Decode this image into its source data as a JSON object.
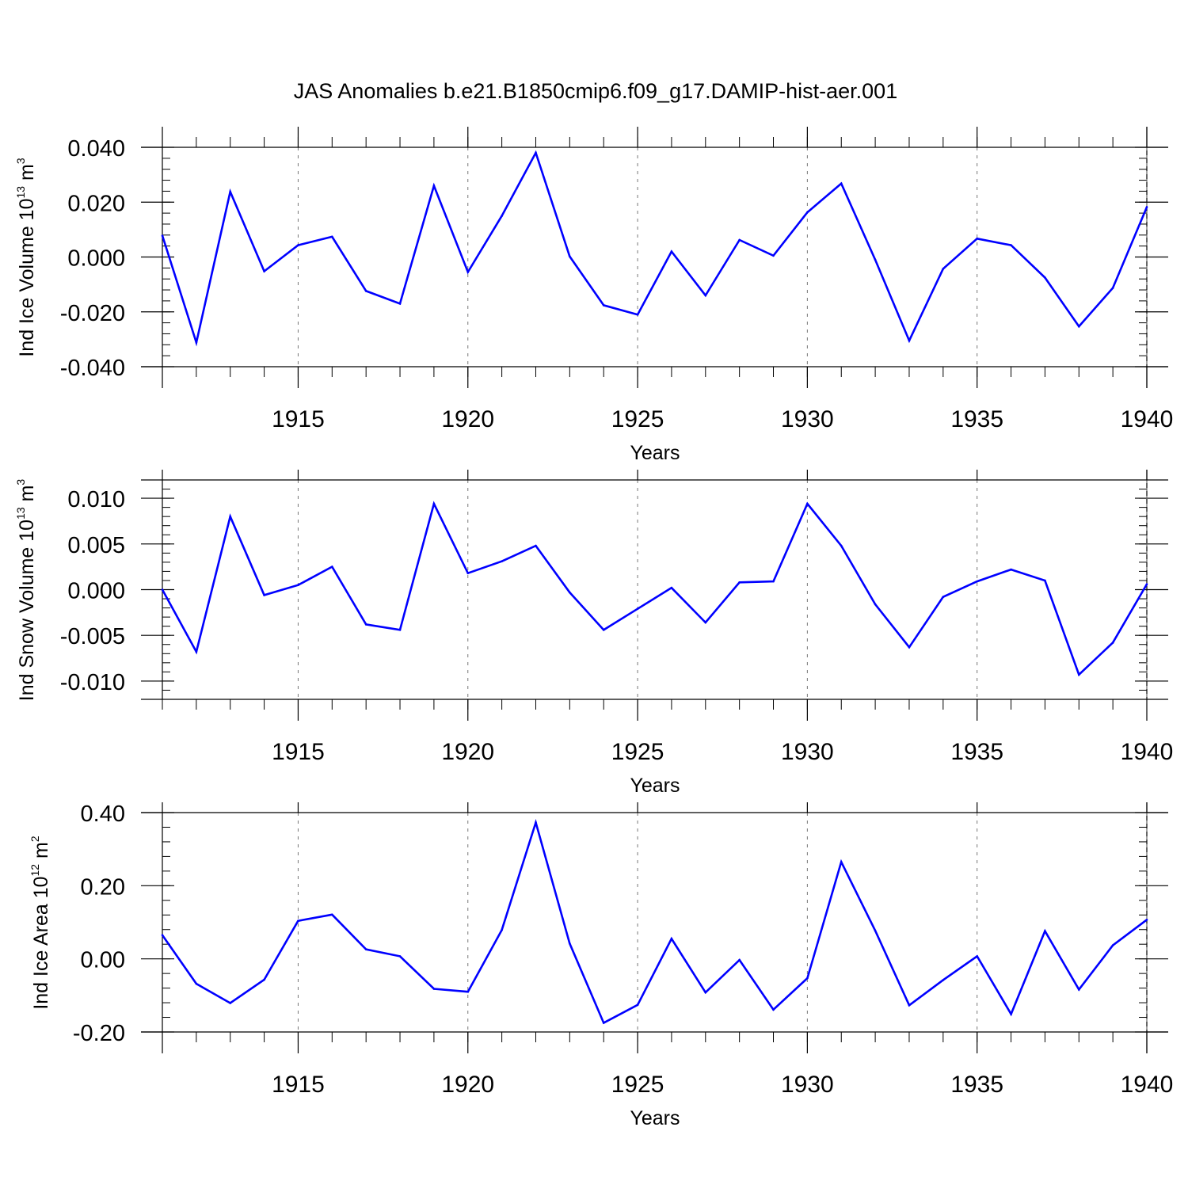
{
  "title": "JAS Anomalies b.e21.B1850cmip6.f09_g17.DAMIP-hist-aer.001",
  "line_color": "#0000ff",
  "chart_data": [
    {
      "type": "line",
      "ylabel_main": "Ind Ice Volume 10",
      "ylabel_exp": "13",
      "ylabel_unit": " m",
      "ylabel_unit_exp": "3",
      "xlabel": "Years",
      "xlim": [
        1911,
        1940
      ],
      "ylim": [
        -0.04,
        0.04
      ],
      "yticks": [
        -0.04,
        -0.02,
        0.0,
        0.02,
        0.04
      ],
      "ytick_labels": [
        "-0.040",
        "-0.020",
        "0.000",
        "0.020",
        "0.040"
      ],
      "yminor_step": 0.004,
      "xticks": [
        1915,
        1920,
        1925,
        1930,
        1935,
        1940
      ],
      "xtick_labels": [
        "1915",
        "1920",
        "1925",
        "1930",
        "1935",
        "1940"
      ],
      "x": [
        1911,
        1912,
        1913,
        1914,
        1915,
        1916,
        1917,
        1918,
        1919,
        1920,
        1921,
        1922,
        1923,
        1924,
        1925,
        1926,
        1927,
        1928,
        1929,
        1930,
        1931,
        1932,
        1933,
        1934,
        1935,
        1936,
        1937,
        1938,
        1939,
        1940
      ],
      "values": [
        0.0078,
        -0.0312,
        0.0238,
        -0.0052,
        0.0043,
        0.0074,
        -0.0124,
        -0.017,
        0.026,
        -0.0055,
        0.015,
        0.038,
        0.0002,
        -0.0176,
        -0.021,
        0.002,
        -0.014,
        0.0062,
        0.0005,
        0.0163,
        0.0268,
        -0.001,
        -0.0305,
        -0.0043,
        0.0067,
        0.0043,
        -0.0075,
        -0.0253,
        -0.0113,
        0.0182
      ]
    },
    {
      "type": "line",
      "ylabel_main": "Ind Snow Volume 10",
      "ylabel_exp": "13",
      "ylabel_unit": " m",
      "ylabel_unit_exp": "3",
      "xlabel": "Years",
      "xlim": [
        1911,
        1940
      ],
      "ylim": [
        -0.012,
        0.012
      ],
      "yticks": [
        -0.01,
        -0.005,
        0.0,
        0.005,
        0.01
      ],
      "ytick_labels": [
        "-0.010",
        "-0.005",
        "0.000",
        "0.005",
        "0.010"
      ],
      "yminor_step": 0.001,
      "xticks": [
        1915,
        1920,
        1925,
        1930,
        1935,
        1940
      ],
      "xtick_labels": [
        "1915",
        "1920",
        "1925",
        "1930",
        "1935",
        "1940"
      ],
      "x": [
        1911,
        1912,
        1913,
        1914,
        1915,
        1916,
        1917,
        1918,
        1919,
        1920,
        1921,
        1922,
        1923,
        1924,
        1925,
        1926,
        1927,
        1928,
        1929,
        1930,
        1931,
        1932,
        1933,
        1934,
        1935,
        1936,
        1937,
        1938,
        1939,
        1940
      ],
      "values": [
        0.0,
        -0.0068,
        0.008,
        -0.0006,
        0.0005,
        0.0025,
        -0.0038,
        -0.0044,
        0.0094,
        0.0018,
        0.0031,
        0.0048,
        -0.0003,
        -0.0044,
        -0.0021,
        0.0002,
        -0.0036,
        0.0008,
        0.0009,
        0.0094,
        0.0048,
        -0.0016,
        -0.0063,
        -0.0008,
        0.0009,
        0.0022,
        0.001,
        -0.0093,
        -0.0058,
        0.0006
      ]
    },
    {
      "type": "line",
      "ylabel_main": "Ind Ice Area 10",
      "ylabel_exp": "12",
      "ylabel_unit": " m",
      "ylabel_unit_exp": "2",
      "xlabel": "Years",
      "xlim": [
        1911,
        1940
      ],
      "ylim": [
        -0.2,
        0.4
      ],
      "yticks": [
        -0.2,
        0.0,
        0.2,
        0.4
      ],
      "ytick_labels": [
        "-0.20",
        "0.00",
        "0.20",
        "0.40"
      ],
      "yminor_step": 0.04,
      "xticks": [
        1915,
        1920,
        1925,
        1930,
        1935,
        1940
      ],
      "xtick_labels": [
        "1915",
        "1920",
        "1925",
        "1930",
        "1935",
        "1940"
      ],
      "x": [
        1911,
        1912,
        1913,
        1914,
        1915,
        1916,
        1917,
        1918,
        1919,
        1920,
        1921,
        1922,
        1923,
        1924,
        1925,
        1926,
        1927,
        1928,
        1929,
        1930,
        1931,
        1932,
        1933,
        1934,
        1935,
        1936,
        1937,
        1938,
        1939,
        1940
      ],
      "values": [
        0.065,
        -0.068,
        -0.121,
        -0.057,
        0.104,
        0.121,
        0.026,
        0.007,
        -0.082,
        -0.09,
        0.079,
        0.373,
        0.042,
        -0.175,
        -0.126,
        0.055,
        -0.092,
        -0.003,
        -0.139,
        -0.053,
        0.265,
        0.077,
        -0.127,
        -0.058,
        0.007,
        -0.151,
        0.076,
        -0.084,
        0.037,
        0.107
      ]
    }
  ]
}
